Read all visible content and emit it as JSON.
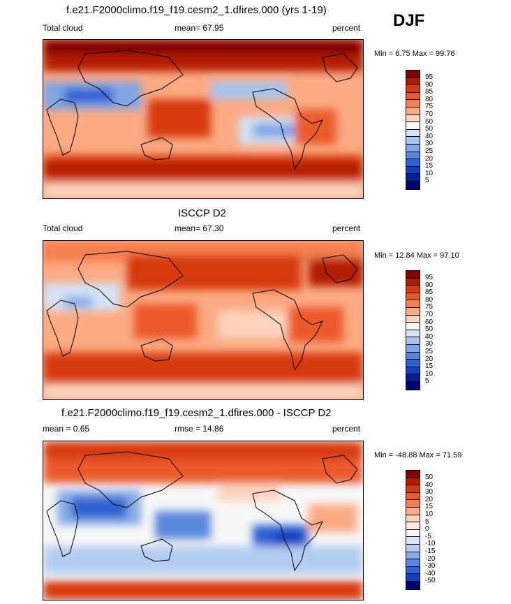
{
  "season": "DJF",
  "colors": {
    "model_scale": [
      "#7f0000",
      "#b21a00",
      "#d73a0f",
      "#ec5a2a",
      "#f57f50",
      "#fbaa83",
      "#fdd3bd",
      "#f7f7f7",
      "#d4e3f7",
      "#a7c4ef",
      "#7fa5e6",
      "#5585dc",
      "#2e62d2",
      "#1140c0",
      "#001f96",
      "#000070"
    ],
    "diff_scale": [
      "#7f0000",
      "#b21a00",
      "#d73a0f",
      "#ec5a2a",
      "#f57f50",
      "#fbaa83",
      "#fdd3bd",
      "#ffeadd",
      "#f7f7f7",
      "#dbe7f8",
      "#b3cdf1",
      "#86ace7",
      "#5a88dc",
      "#2e62d2",
      "#1140c0",
      "#001f96",
      "#000070"
    ],
    "land": "#000000"
  },
  "panels": [
    {
      "title": "f.e21.F2000climo.f19_f19.cesm2_1.dfires.000 (yrs 1-19)",
      "left_label": "Total cloud",
      "center_label": "mean=  67.95",
      "right_label": "percent",
      "minmax": "Min =  6.75 Max =  99.76",
      "ticks": [
        "95",
        "90",
        "85",
        "80",
        "75",
        "70",
        "60",
        "50",
        "40",
        "30",
        "25",
        "20",
        "15",
        "10",
        "5"
      ]
    },
    {
      "title": "ISCCP D2",
      "left_label": "Total cloud",
      "center_label": "mean=  67.30",
      "right_label": "percent",
      "minmax": "Min = 12.84 Max =  97.10",
      "ticks": [
        "95",
        "90",
        "85",
        "80",
        "75",
        "70",
        "60",
        "50",
        "40",
        "30",
        "25",
        "20",
        "15",
        "10",
        "5"
      ]
    },
    {
      "title": "f.e21.F2000climo.f19_f19.cesm2_1.dfires.000 - ISCCP D2",
      "left_label": "mean =   0.65",
      "center_label": "rmse =  14.86",
      "right_label": "percent",
      "minmax": "Min = -48.88 Max =  71.59",
      "ticks": [
        "50",
        "40",
        "30",
        "20",
        "15",
        "10",
        "5",
        "0",
        "-5",
        "-10",
        "-15",
        "-20",
        "-30",
        "-40",
        "-50"
      ]
    }
  ]
}
